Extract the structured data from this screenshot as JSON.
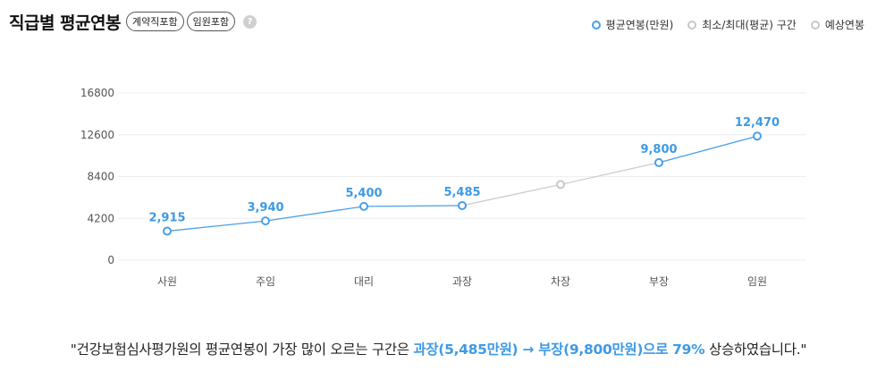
{
  "header": {
    "title": "직급별 평균연봉",
    "tags": [
      "계약직포함",
      "임원포함"
    ],
    "help_icon": "?"
  },
  "legend": [
    {
      "label": "평균연봉(만원)",
      "color": "#4a9fe8"
    },
    {
      "label": "최소/최대(평균) 구간",
      "color": "#c8c8c8"
    },
    {
      "label": "예상연봉",
      "color": "#c8c8c8"
    }
  ],
  "chart_data": {
    "type": "line",
    "categories": [
      "사원",
      "주임",
      "대리",
      "과장",
      "차장",
      "부장",
      "임원"
    ],
    "series": [
      {
        "name": "평균연봉(만원)",
        "values": [
          2915,
          3940,
          5400,
          5485,
          null,
          9800,
          12470
        ],
        "color": "#4a9fe8"
      },
      {
        "name": "예상연봉",
        "values": [
          null,
          null,
          null,
          5485,
          7600,
          9800,
          null
        ],
        "color": "#cccccc"
      }
    ],
    "data_labels": [
      "2,915",
      "3,940",
      "5,400",
      "5,485",
      "",
      "9,800",
      "12,470"
    ],
    "yticks": [
      "16800",
      "12600",
      "8400",
      "4200",
      "0"
    ],
    "ylim": [
      0,
      16800
    ],
    "grid": true
  },
  "summary": {
    "prefix": "\"건강보험심사평가원의 평균연봉이 가장 많이 오르는 구간은 ",
    "highlight": "과장(5,485만원) → 부장(9,800만원)으로 79%",
    "suffix": " 상승하였습니다.\""
  },
  "colors": {
    "accent": "#4a9fe8",
    "grey_line": "#cccccc",
    "grid": "#eeeeee"
  }
}
